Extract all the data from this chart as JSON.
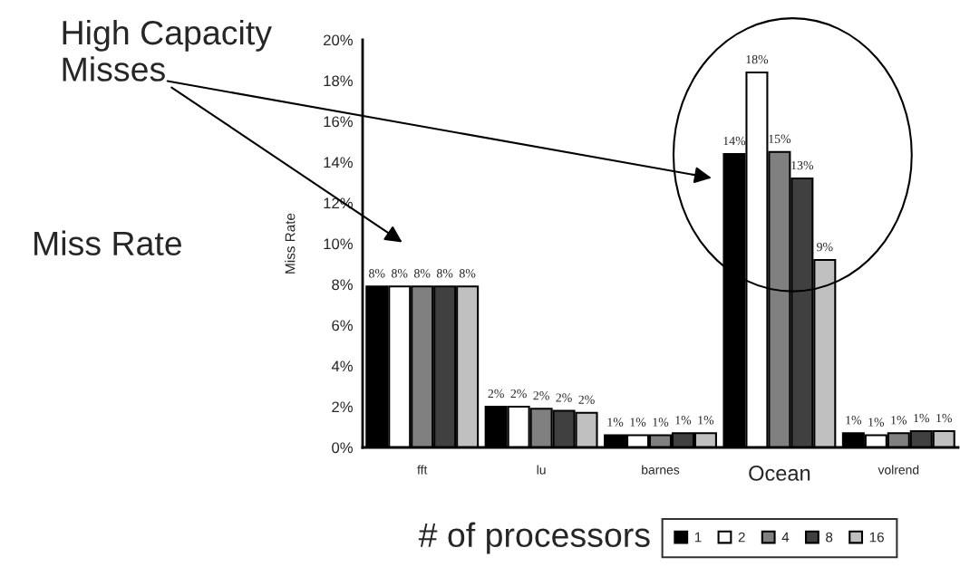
{
  "chart_data": {
    "type": "bar",
    "categories": [
      "fft",
      "lu",
      "barnes",
      "Ocean",
      "volrend"
    ],
    "ylabel": "Miss Rate",
    "legend_title": "# of processors",
    "legend": "bottom",
    "grid": false,
    "ylim": [
      0,
      20
    ],
    "yticks": [
      {
        "value": 0,
        "label": "0%"
      },
      {
        "value": 2,
        "label": "2%"
      },
      {
        "value": 4,
        "label": "4%"
      },
      {
        "value": 6,
        "label": "6%"
      },
      {
        "value": 8,
        "label": "8%"
      },
      {
        "value": 10,
        "label": "10%"
      },
      {
        "value": 12,
        "label": "12%"
      },
      {
        "value": 14,
        "label": "14%"
      },
      {
        "value": 16,
        "label": "16%"
      },
      {
        "value": 18,
        "label": "18%"
      },
      {
        "value": 20,
        "label": "20%"
      }
    ],
    "annotations": [
      "High Capacity Misses",
      "Miss Rate"
    ],
    "series": [
      {
        "name": "1",
        "color": "#000000",
        "values": [
          7.9,
          2.0,
          0.6,
          14.4,
          0.7
        ],
        "value_labels": [
          "8%",
          "2%",
          "1%",
          "14%",
          "1%"
        ]
      },
      {
        "name": "2",
        "color": "#ffffff",
        "values": [
          7.9,
          2.0,
          0.6,
          18.4,
          0.6
        ],
        "value_labels": [
          "8%",
          "2%",
          "1%",
          "18%",
          "1%"
        ]
      },
      {
        "name": "4",
        "color": "#808080",
        "values": [
          7.9,
          1.9,
          0.6,
          14.5,
          0.7
        ],
        "value_labels": [
          "8%",
          "2%",
          "1%",
          "15%",
          "1%"
        ]
      },
      {
        "name": "8",
        "color": "#404040",
        "values": [
          7.9,
          1.8,
          0.7,
          13.2,
          0.8
        ],
        "value_labels": [
          "8%",
          "2%",
          "1%",
          "13%",
          "1%"
        ]
      },
      {
        "name": "16",
        "color": "#c0c0c0",
        "values": [
          7.9,
          1.7,
          0.7,
          9.2,
          0.8
        ],
        "value_labels": [
          "8%",
          "2%",
          "1%",
          "9%",
          "1%"
        ]
      }
    ]
  }
}
